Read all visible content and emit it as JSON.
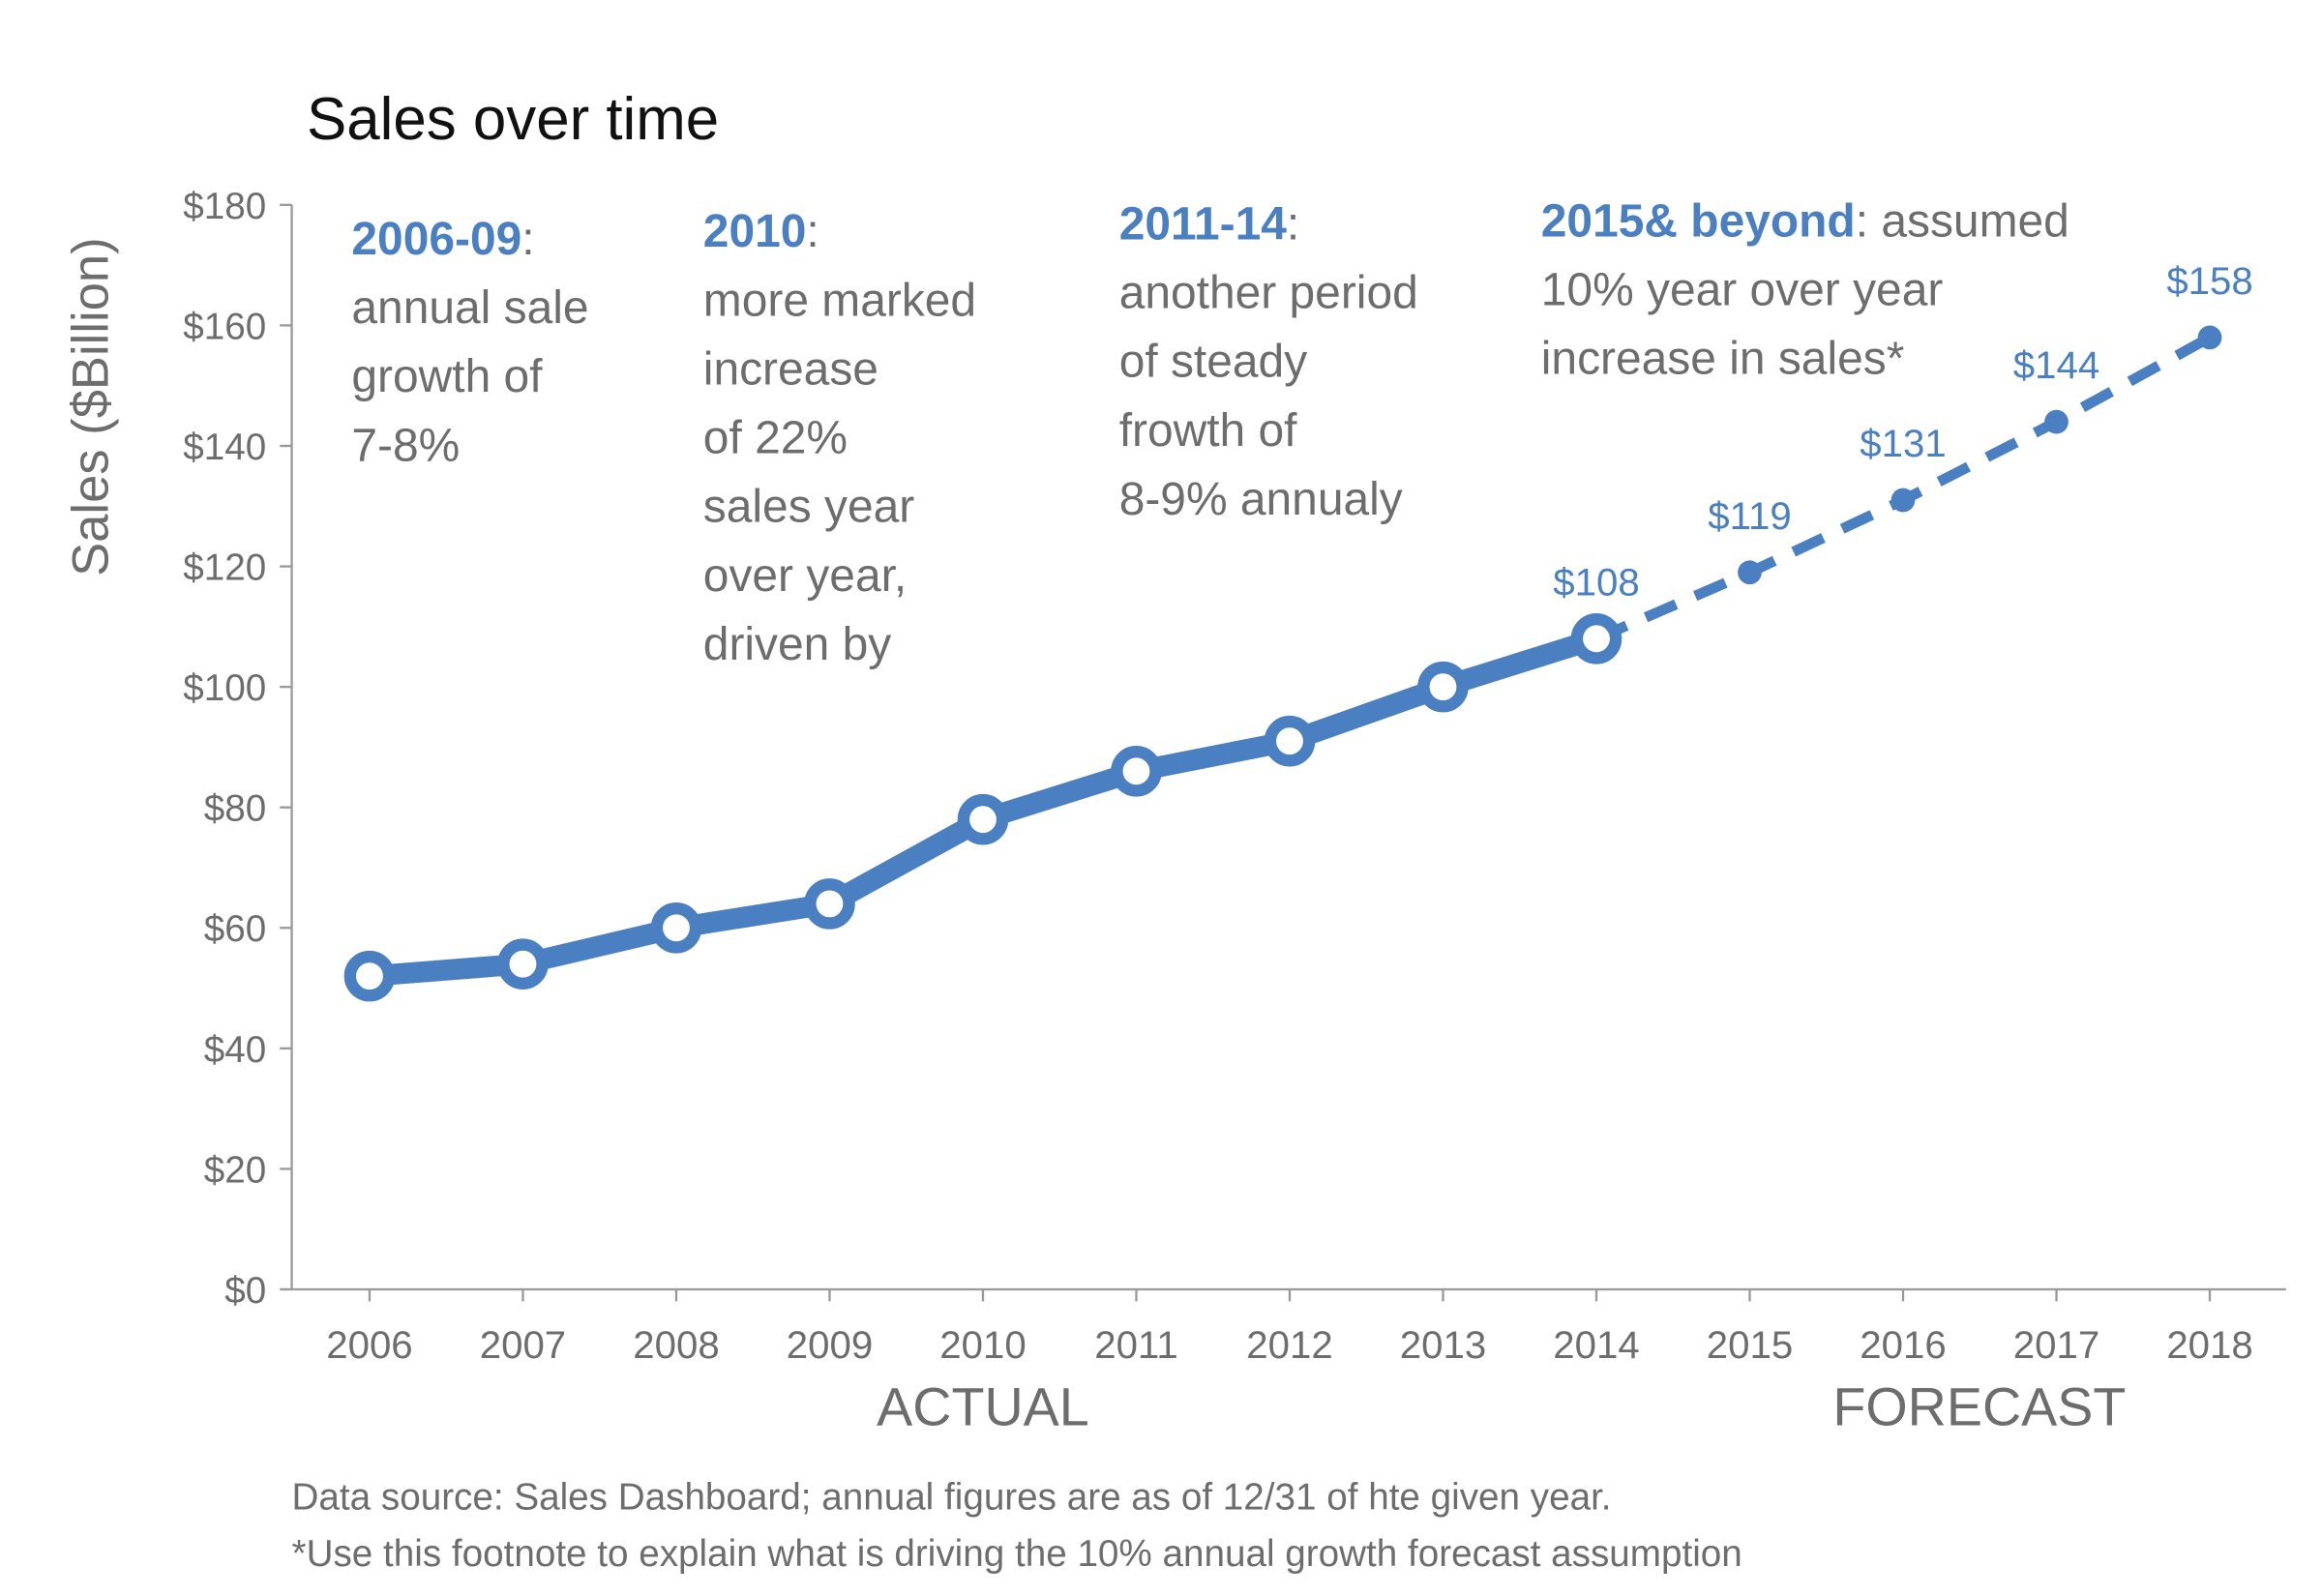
{
  "chart_data": {
    "type": "line",
    "title": "Sales over time",
    "y_label": "Sales ($Billion)",
    "categories": [
      "2006",
      "2007",
      "2008",
      "2009",
      "2010",
      "2011",
      "2012",
      "2013",
      "2014",
      "2015",
      "2016",
      "2017",
      "2018"
    ],
    "series": [
      {
        "name": "ACTUAL",
        "color": "#4a7fc1",
        "style": "solid",
        "values": [
          52,
          54,
          60,
          64,
          78,
          86,
          91,
          100,
          108,
          null,
          null,
          null,
          null
        ],
        "value_labels": [
          null,
          null,
          null,
          null,
          null,
          null,
          null,
          null,
          "$108",
          null,
          null,
          null,
          null
        ]
      },
      {
        "name": "FORECAST",
        "color": "#4a7fc1",
        "style": "dashed",
        "values": [
          null,
          null,
          null,
          null,
          null,
          null,
          null,
          null,
          108,
          119,
          131,
          144,
          158
        ],
        "value_labels": [
          null,
          null,
          null,
          null,
          null,
          null,
          null,
          null,
          null,
          "$119",
          "$131",
          "$144",
          "$158"
        ]
      }
    ],
    "ylim": [
      0,
      180
    ],
    "yticks": [
      {
        "value": 0,
        "label": "$0"
      },
      {
        "value": 20,
        "label": "$20"
      },
      {
        "value": 40,
        "label": "$40"
      },
      {
        "value": 60,
        "label": "$60"
      },
      {
        "value": 80,
        "label": "$80"
      },
      {
        "value": 100,
        "label": "$100"
      },
      {
        "value": 120,
        "label": "$120"
      },
      {
        "value": 140,
        "label": "$140"
      },
      {
        "value": 160,
        "label": "$160"
      },
      {
        "value": 180,
        "label": "$180"
      }
    ],
    "grid": false,
    "annotations": [
      {
        "heading": "2006-09",
        "lines": [
          ":",
          "annual sale",
          "growth of",
          "7-8%"
        ]
      },
      {
        "heading": "2010",
        "lines": [
          ":",
          "more marked",
          "increase",
          "of 22%",
          "sales year",
          "over year,",
          "driven by"
        ]
      },
      {
        "heading": "2011-14",
        "lines": [
          ":",
          "another period",
          "of steady",
          "frowth of",
          "8-9% annualy"
        ]
      },
      {
        "heading": "2015& beyond",
        "lines": [
          ": assumed",
          "10% year over year",
          "increase in sales*"
        ]
      }
    ],
    "footnotes": [
      "Data source: Sales Dashboard; annual figures are as of 12/31 of hte given year.",
      "*Use this footnote to explain what is driving the 10% annual growth forecast assumption"
    ]
  }
}
